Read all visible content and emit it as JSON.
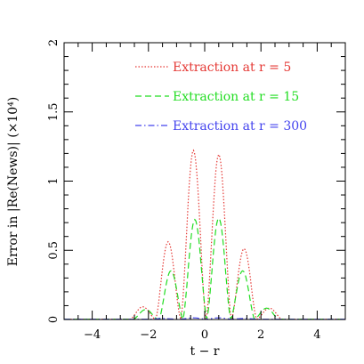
{
  "chart_data": {
    "type": "line",
    "xlabel": "t − r",
    "ylabel": "Error in |Re(News)| (×10⁴)",
    "xlim": [
      -5,
      5
    ],
    "ylim": [
      0,
      2
    ],
    "x_ticks": [
      "−4",
      "−2",
      "0",
      "2",
      "4"
    ],
    "x_tick_values": [
      -4,
      -2,
      0,
      2,
      4
    ],
    "y_ticks": [
      "0",
      "0.5",
      "1",
      "1.5",
      "2"
    ],
    "y_tick_values": [
      0,
      0.5,
      1,
      1.5,
      2
    ],
    "grid": false,
    "legend_position": "top-right",
    "series": [
      {
        "name": "Extraction at r = 5",
        "color": "#e53935",
        "style": "dotted",
        "peaks": [
          {
            "x": -2.2,
            "y": 0.09
          },
          {
            "x": -1.3,
            "y": 0.56
          },
          {
            "x": -0.4,
            "y": 1.22
          },
          {
            "x": 0.5,
            "y": 1.19
          },
          {
            "x": 1.4,
            "y": 0.51
          },
          {
            "x": 2.3,
            "y": 0.08
          }
        ]
      },
      {
        "name": "Extraction at r = 15",
        "color": "#22dd22",
        "style": "dashed",
        "peaks": [
          {
            "x": -2.1,
            "y": 0.07
          },
          {
            "x": -1.2,
            "y": 0.35
          },
          {
            "x": -0.35,
            "y": 0.72
          },
          {
            "x": 0.5,
            "y": 0.73
          },
          {
            "x": 1.35,
            "y": 0.35
          },
          {
            "x": 2.2,
            "y": 0.08
          }
        ]
      },
      {
        "name": "Extraction at r = 300",
        "color": "#4444ee",
        "style": "dashdot",
        "peaks": [
          {
            "x": -1.5,
            "y": 0.005
          },
          {
            "x": -0.4,
            "y": 0.01
          },
          {
            "x": 0.5,
            "y": 0.01
          },
          {
            "x": 1.4,
            "y": 0.005
          }
        ]
      }
    ]
  }
}
